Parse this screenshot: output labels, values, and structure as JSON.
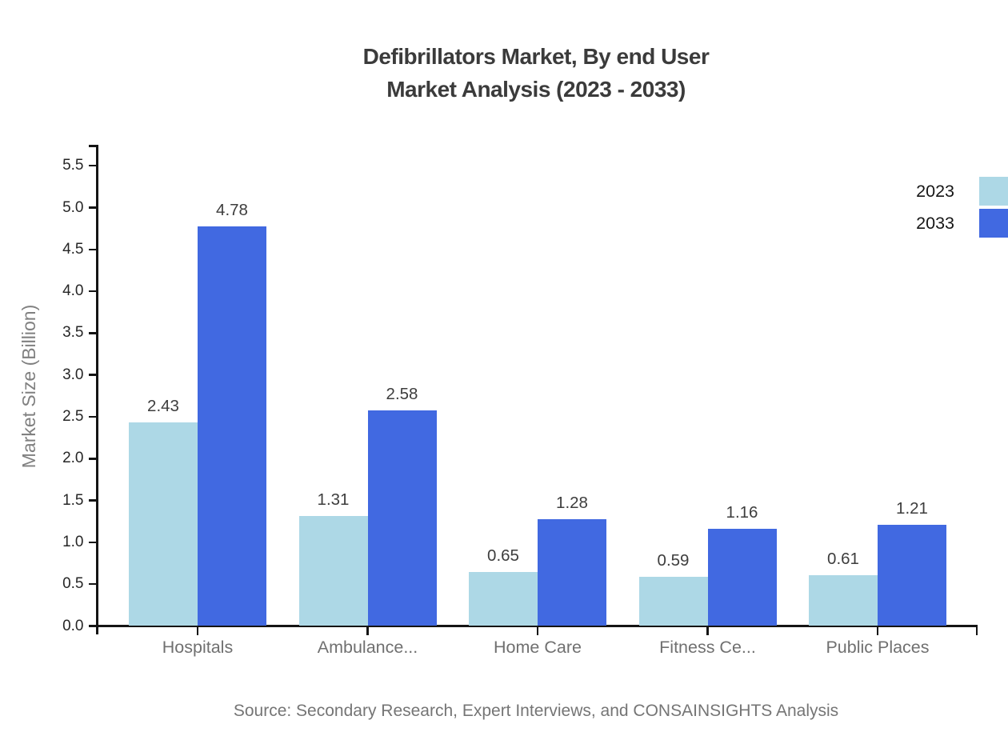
{
  "title": {
    "line1": "Defibrillators Market, By end User",
    "line2": "Market Analysis (2023 - 2033)"
  },
  "legend": [
    {
      "label": "2023",
      "color": "#ADD8E6"
    },
    {
      "label": "2033",
      "color": "#4169E1"
    }
  ],
  "source": "Source: Secondary Research, Expert Interviews, and CONSAINSIGHTS Analysis",
  "chart_data": {
    "type": "bar",
    "title": "Defibrillators Market, By end User Market Analysis (2023 - 2033)",
    "categories": [
      "Hospitals",
      "Ambulance...",
      "Home Care",
      "Fitness Ce...",
      "Public Places"
    ],
    "series": [
      {
        "name": "2023",
        "color": "#ADD8E6",
        "values": [
          2.43,
          1.31,
          0.65,
          0.59,
          0.61
        ]
      },
      {
        "name": "2033",
        "color": "#4169E1",
        "values": [
          4.78,
          2.58,
          1.28,
          1.16,
          1.21
        ]
      }
    ],
    "xlabel": "",
    "ylabel": "Market Size (Billion)",
    "ylim": [
      0,
      5.75
    ],
    "yticks": [
      0.0,
      0.5,
      1.0,
      1.5,
      2.0,
      2.5,
      3.0,
      3.5,
      4.0,
      4.5,
      5.0,
      5.5
    ],
    "grid": false,
    "legend_position": "top-right",
    "value_labels": true
  }
}
